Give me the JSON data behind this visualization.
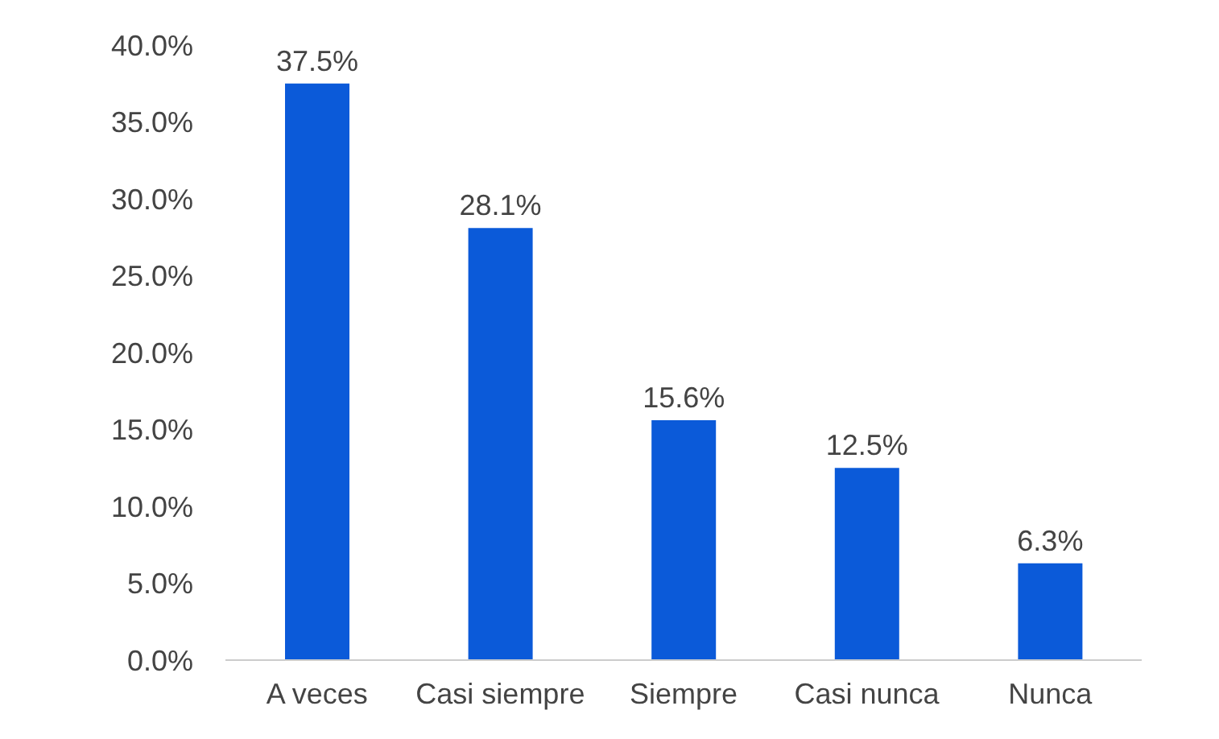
{
  "chart_data": {
    "type": "bar",
    "categories": [
      "A veces",
      "Casi siempre",
      "Siempre",
      "Casi nunca",
      "Nunca"
    ],
    "values": [
      37.5,
      28.1,
      15.6,
      12.5,
      6.3
    ],
    "value_labels": [
      "37.5%",
      "28.1%",
      "15.6%",
      "12.5%",
      "6.3%"
    ],
    "color": "#0b5ad9",
    "ylim": [
      0,
      40
    ],
    "yticks": [
      {
        "value": 0,
        "label": "0.0%"
      },
      {
        "value": 5,
        "label": "5.0%"
      },
      {
        "value": 10,
        "label": "10.0%"
      },
      {
        "value": 15,
        "label": "15.0%"
      },
      {
        "value": 20,
        "label": "20.0%"
      },
      {
        "value": 25,
        "label": "25.0%"
      },
      {
        "value": 30,
        "label": "30.0%"
      },
      {
        "value": 35,
        "label": "35.0%"
      },
      {
        "value": 40,
        "label": "40.0%"
      }
    ],
    "grid": false,
    "legend": false
  }
}
